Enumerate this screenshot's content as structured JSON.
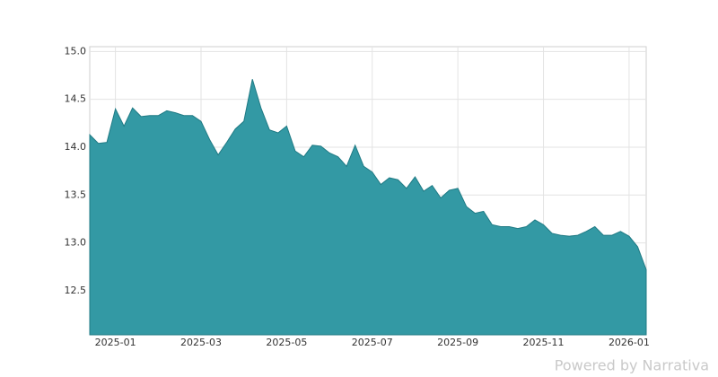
{
  "chart_data": {
    "type": "area",
    "categories": [
      null,
      null,
      null,
      "2025-01",
      null,
      null,
      null,
      null,
      null,
      null,
      null,
      null,
      null,
      "2025-03",
      null,
      null,
      null,
      null,
      null,
      null,
      null,
      null,
      null,
      "2025-05",
      null,
      null,
      null,
      null,
      null,
      null,
      null,
      null,
      null,
      "2025-07",
      null,
      null,
      null,
      null,
      null,
      null,
      null,
      null,
      null,
      "2025-09",
      null,
      null,
      null,
      null,
      null,
      null,
      null,
      null,
      null,
      "2025-11",
      null,
      null,
      null,
      null,
      null,
      null,
      null,
      null,
      null,
      "2026-01",
      null,
      null
    ],
    "values": [
      14.13,
      14.04,
      14.05,
      14.4,
      14.22,
      14.41,
      14.32,
      14.33,
      14.33,
      14.38,
      14.36,
      14.33,
      14.33,
      14.27,
      14.08,
      13.92,
      14.05,
      14.19,
      14.27,
      14.71,
      14.41,
      14.18,
      14.15,
      14.22,
      13.96,
      13.9,
      14.02,
      14.01,
      13.94,
      13.9,
      13.8,
      14.02,
      13.8,
      13.74,
      13.61,
      13.68,
      13.66,
      13.57,
      13.69,
      13.54,
      13.6,
      13.47,
      13.55,
      13.57,
      13.38,
      13.31,
      13.33,
      13.19,
      13.17,
      13.17,
      13.15,
      13.17,
      13.24,
      13.19,
      13.1,
      13.08,
      13.07,
      13.08,
      13.12,
      13.17,
      13.08,
      13.08,
      13.12,
      13.07,
      12.96,
      12.72
    ],
    "color": "#3399a4",
    "ylim": [
      12.04,
      15.05
    ],
    "yticks": [
      12.5,
      {
        "value": 13,
        "label": "13.0"
      },
      13.5,
      {
        "value": 14,
        "label": "14.0"
      },
      14.5,
      {
        "value": 15,
        "label": "15.0"
      }
    ],
    "grid": true
  },
  "watermark": "Powered by Narrativa"
}
